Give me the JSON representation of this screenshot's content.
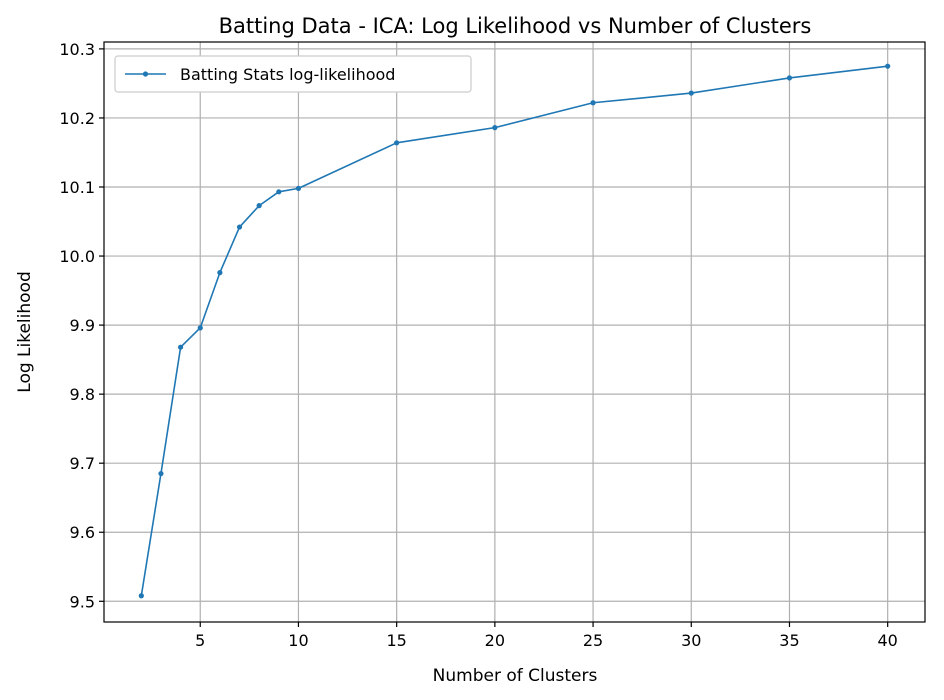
{
  "chart_data": {
    "type": "line",
    "title": "Batting Data - ICA: Log Likelihood vs Number of Clusters",
    "xlabel": "Number of Clusters",
    "ylabel": "Log Likelihood",
    "xlim": [
      0.1,
      41.9
    ],
    "ylim": [
      9.47,
      10.31
    ],
    "x_ticks": [
      5,
      10,
      15,
      20,
      25,
      30,
      35,
      40
    ],
    "x_tick_labels": [
      "5",
      "10",
      "15",
      "20",
      "25",
      "30",
      "35",
      "40"
    ],
    "y_ticks": [
      9.5,
      9.6,
      9.7,
      9.8,
      9.9,
      10.0,
      10.1,
      10.2,
      10.3
    ],
    "y_tick_labels": [
      "9.5",
      "9.6",
      "9.7",
      "9.8",
      "9.9",
      "10.0",
      "10.1",
      "10.2",
      "10.3"
    ],
    "grid": true,
    "legend_position": "top-left",
    "series": [
      {
        "name": "Batting Stats log-likelihood",
        "color": "#1f77b4",
        "x": [
          2,
          3,
          4,
          5,
          6,
          7,
          8,
          9,
          10,
          15,
          20,
          25,
          30,
          35,
          40
        ],
        "y": [
          9.508,
          9.685,
          9.868,
          9.896,
          9.976,
          10.042,
          10.073,
          10.093,
          10.098,
          10.164,
          10.186,
          10.222,
          10.236,
          10.258,
          10.275
        ]
      }
    ]
  }
}
